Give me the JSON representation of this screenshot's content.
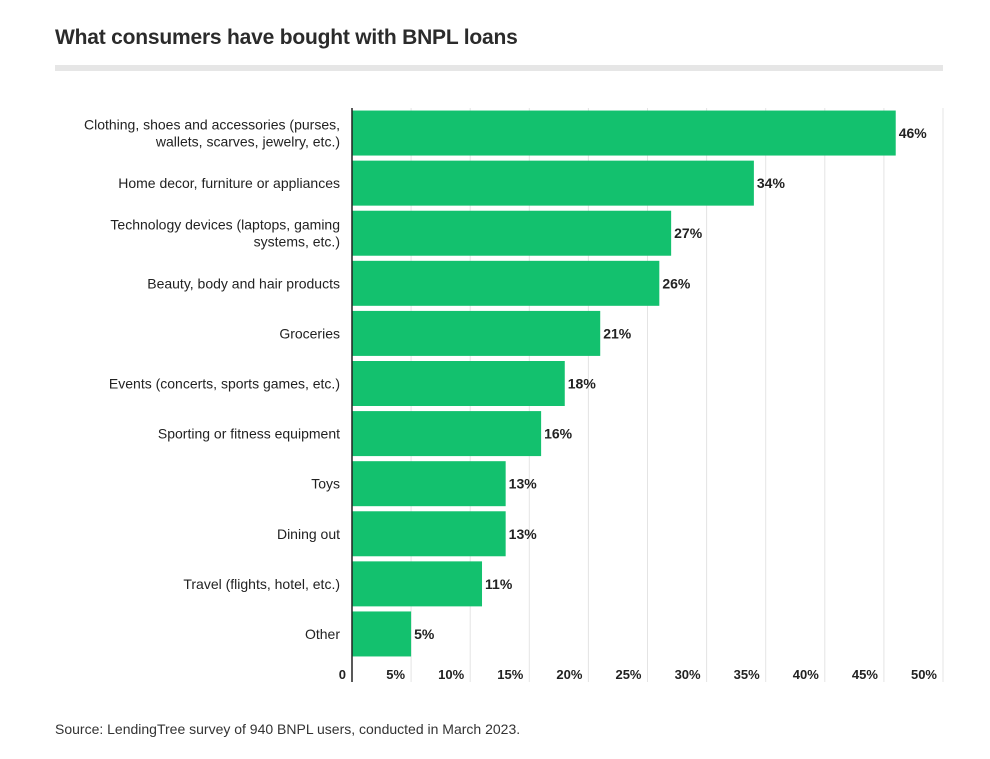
{
  "chart_data": {
    "type": "bar",
    "orientation": "horizontal",
    "title": "What consumers have bought with BNPL loans",
    "categories": [
      [
        "Clothing, shoes and accessories (purses,",
        "wallets, scarves, jewelry, etc.)"
      ],
      [
        "Home decor, furniture or appliances"
      ],
      [
        "Technology devices (laptops, gaming",
        "systems, etc.)"
      ],
      [
        "Beauty, body and hair products"
      ],
      [
        "Groceries"
      ],
      [
        "Events (concerts, sports games, etc.)"
      ],
      [
        "Sporting or fitness equipment"
      ],
      [
        "Toys"
      ],
      [
        "Dining out"
      ],
      [
        "Travel (flights, hotel, etc.)"
      ],
      [
        "Other"
      ]
    ],
    "values": [
      46,
      34,
      27,
      26,
      21,
      18,
      16,
      13,
      13,
      11,
      5
    ],
    "value_labels": [
      "46%",
      "34%",
      "27%",
      "26%",
      "21%",
      "18%",
      "16%",
      "13%",
      "13%",
      "11%",
      "5%"
    ],
    "xlim": [
      0,
      50
    ],
    "x_ticks": [
      0,
      5,
      10,
      15,
      20,
      25,
      30,
      35,
      40,
      45,
      50
    ],
    "x_tick_labels": [
      "0",
      "5%",
      "10%",
      "15%",
      "20%",
      "25%",
      "30%",
      "35%",
      "40%",
      "45%",
      "50%"
    ],
    "grid": true,
    "bar_color": "#13c16e",
    "source": "Source: LendingTree survey of 940 BNPL users, conducted in March 2023."
  }
}
